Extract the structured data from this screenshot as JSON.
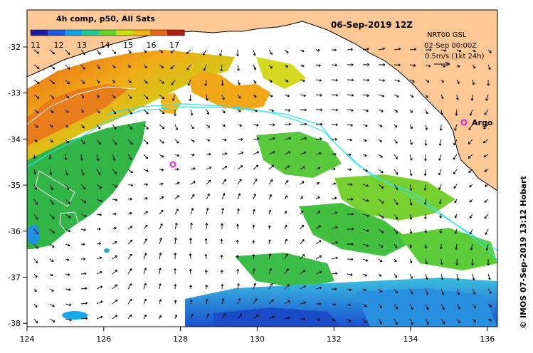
{
  "map": {
    "date_title": "06-Sep-2019 12Z",
    "colorbar": {
      "title": "4h comp, p50, All Sats",
      "ticks": [
        "11",
        "12",
        "13",
        "14",
        "15",
        "16",
        "17"
      ],
      "colors": [
        "#1a1aa0",
        "#1a5adc",
        "#14a0e6",
        "#22c88c",
        "#64d228",
        "#c8dc14",
        "#f0b414",
        "#e66414",
        "#aa2010"
      ]
    },
    "velocity_info": {
      "line1": "NRT00 GSL",
      "line2": "02-Sep 00:00Z",
      "line3": "0.5m/s (1kt 24h)"
    },
    "argo_label": "Argo",
    "credit": "© IMOS 07-Sep-2019 13:12 Hobart",
    "lon_ticks": [
      "124",
      "126",
      "128",
      "130",
      "132",
      "134",
      "136"
    ],
    "lat_ticks": [
      "-32",
      "-33",
      "-34",
      "-35",
      "-36",
      "-37",
      "-38"
    ],
    "colors": {
      "land": "#fdc896",
      "coast": "#000000",
      "contour_cyan": "#33e0f0",
      "argo": "#e020e0"
    }
  }
}
